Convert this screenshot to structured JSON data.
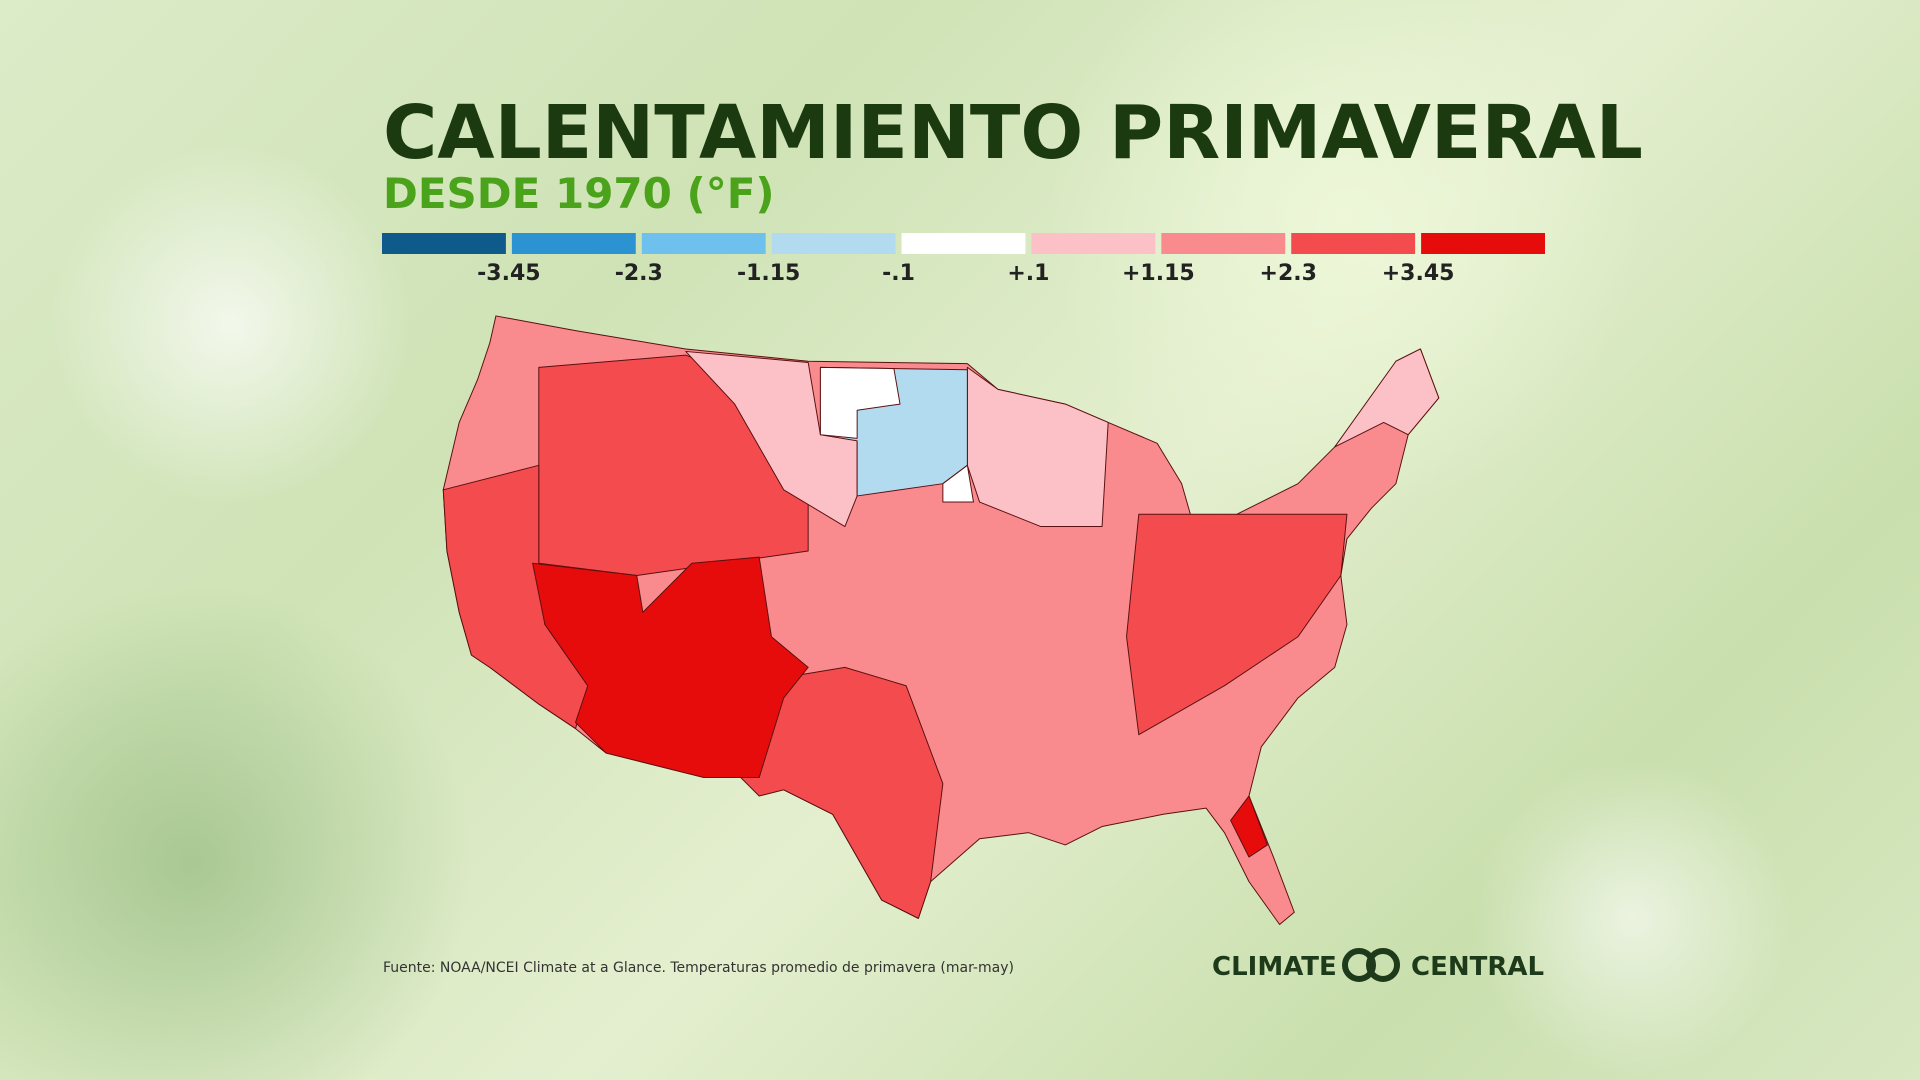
{
  "header": {
    "title": "CALENTAMIENTO PRIMAVERAL",
    "subtitle": "DESDE 1970 (°F)"
  },
  "legend": {
    "colors": [
      "#0e5a8a",
      "#2b93d1",
      "#6ec1ec",
      "#b3dbf0",
      "#ffffff",
      "#fcc1c6",
      "#f98b8f",
      "#f44c4e",
      "#e60c0c"
    ],
    "labels": [
      "-3.45",
      "-2.3",
      "-1.15",
      "-.1",
      "+.1",
      "+1.15",
      "+2.3",
      "+3.45"
    ]
  },
  "footer": {
    "source": "Fuente: NOAA/NCEI Climate at a Glance. Temperaturas promedio de primavera (mar-may)",
    "logo_left": "CLIMATE",
    "logo_right": "CENTRAL"
  }
}
